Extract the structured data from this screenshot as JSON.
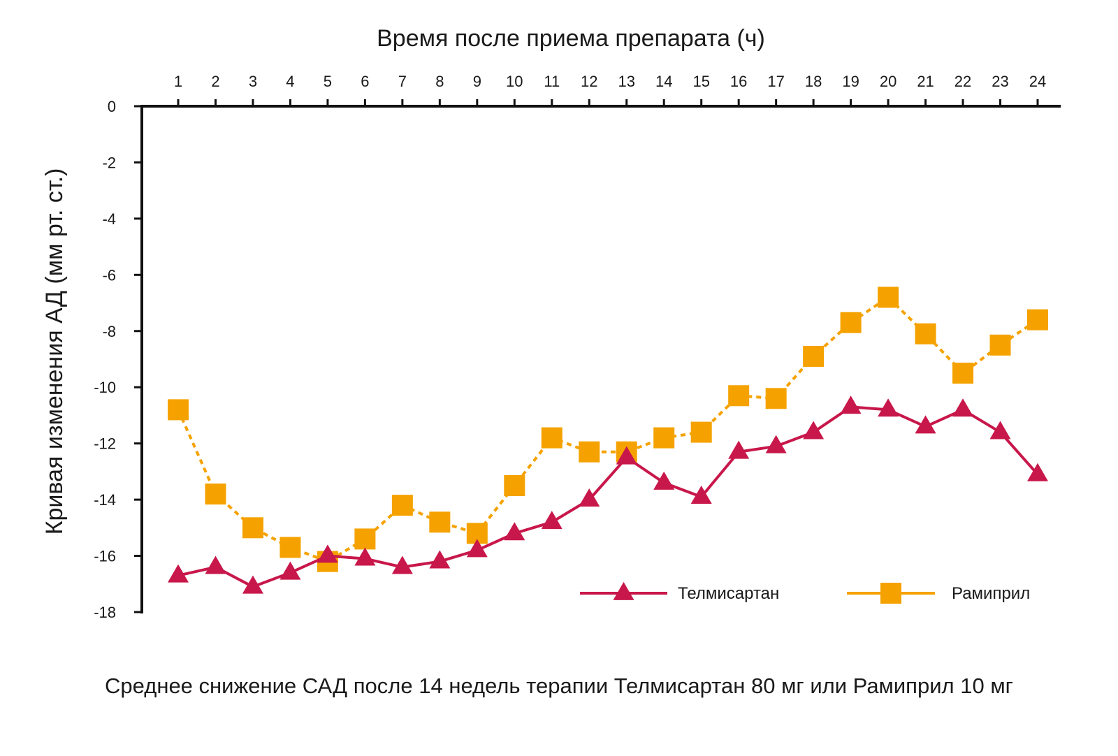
{
  "chart_data": {
    "type": "line",
    "xlabel": "Время после приема препарата (ч)",
    "ylabel": "Кривая изменения АД (мм рт. ст.)",
    "caption": "Среднее снижение САД после 14 недель терапии Телмисартан 80 мг или Рамиприл 10 мг",
    "x": [
      1,
      2,
      3,
      4,
      5,
      6,
      7,
      8,
      9,
      10,
      11,
      12,
      13,
      14,
      15,
      16,
      17,
      18,
      19,
      20,
      21,
      22,
      23,
      24
    ],
    "ylim": [
      -18,
      0
    ],
    "yticks": [
      0,
      -2,
      -4,
      -6,
      -8,
      -10,
      -12,
      -14,
      -16,
      -18
    ],
    "grid": false,
    "legend_position": "bottom-right",
    "series": [
      {
        "name": "Телмисартан",
        "color": "#C8174A",
        "marker": "triangle",
        "line_style": "solid",
        "values": [
          -16.7,
          -16.4,
          -17.1,
          -16.6,
          -16.0,
          -16.1,
          -16.4,
          -16.2,
          -15.8,
          -15.2,
          -14.8,
          -14.0,
          -12.5,
          -13.4,
          -13.9,
          -12.3,
          -12.1,
          -11.6,
          -10.7,
          -10.8,
          -11.4,
          -10.8,
          -11.6,
          -13.1
        ]
      },
      {
        "name": "Рамиприл",
        "color": "#F5A200",
        "marker": "square",
        "line_style": "dashed",
        "values": [
          -10.8,
          -13.8,
          -15.0,
          -15.7,
          -16.2,
          -15.4,
          -14.2,
          -14.8,
          -15.2,
          -13.5,
          -11.8,
          -12.3,
          -12.3,
          -11.8,
          -11.6,
          -10.3,
          -10.4,
          -8.9,
          -7.7,
          -6.8,
          -8.1,
          -9.5,
          -8.5,
          -7.6
        ]
      }
    ]
  }
}
